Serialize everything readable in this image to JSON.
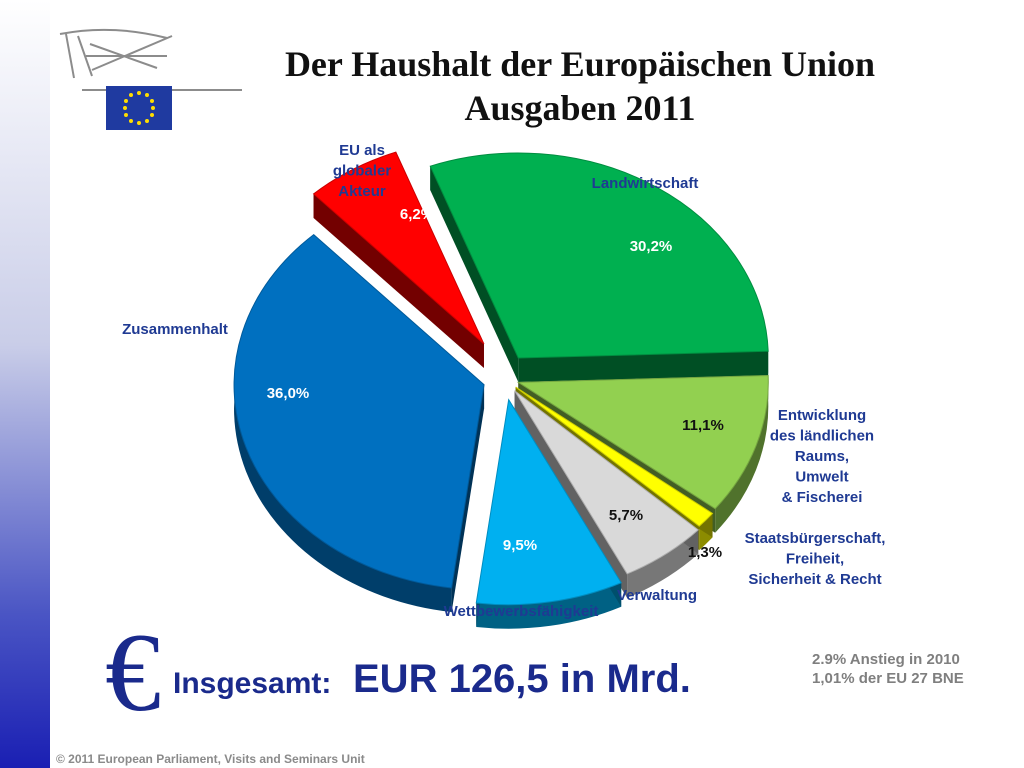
{
  "slide": {
    "title_line1": "Der Haushalt der Europäischen Union",
    "title_line2": "Ausgaben 2011",
    "euro_symbol": "€",
    "total_label": "Insgesamt:",
    "total_value": "EUR 126,5 in Mrd.",
    "note_line1": "2.9% Anstieg in 2010",
    "note_line2": "1,01% der EU 27 BNE",
    "copyright": "© 2011 European Parliament, Visits and Seminars Unit"
  },
  "colors": {
    "title": "#111111",
    "labels": "#1f3a93",
    "total": "#1a2a8c",
    "notes": "#7f7f7f"
  },
  "chart_data": {
    "type": "pie",
    "title": "Der Haushalt der Europäischen Union Ausgaben 2011",
    "style": "3d-exploded",
    "slices": [
      {
        "label_lines": [
          "Landwirtschaft"
        ],
        "value": 30.2,
        "value_label": "30,2%",
        "color": "#00b050"
      },
      {
        "label_lines": [
          "Entwicklung",
          "des ländlichen",
          "Raums,",
          "Umwelt",
          "& Fischerei"
        ],
        "value": 11.1,
        "value_label": "11,1%",
        "color": "#92d050"
      },
      {
        "label_lines": [
          "Staatsbürgerschaft,",
          "Freiheit,",
          "Sicherheit & Recht"
        ],
        "value": 1.3,
        "value_label": "1,3%",
        "color": "#ffff00"
      },
      {
        "label_lines": [
          "Verwaltung"
        ],
        "value": 5.7,
        "value_label": "5,7%",
        "color": "#d9d9d9"
      },
      {
        "label_lines": [
          "Wettbewerbsfähigkeit"
        ],
        "value": 9.5,
        "value_label": "9,5%",
        "color": "#00b0f0"
      },
      {
        "label_lines": [
          "Zusammenhalt"
        ],
        "value": 36.0,
        "value_label": "36,0%",
        "color": "#0070c0"
      },
      {
        "label_lines": [
          "EU als",
          "globaler",
          "Akteur"
        ],
        "value": 6.2,
        "value_label": "6,2%",
        "color": "#ff0000"
      }
    ]
  }
}
